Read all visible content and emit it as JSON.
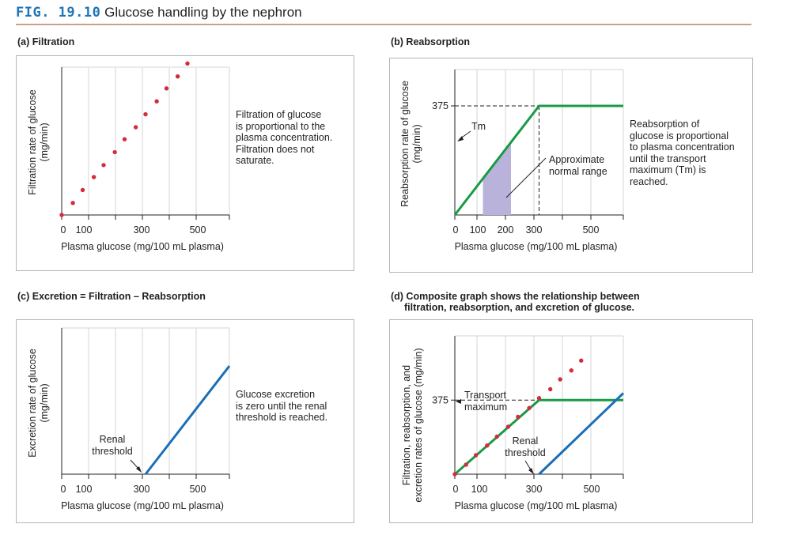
{
  "figure": {
    "number": "FIG. 19.10",
    "title": "Glucose handling by the nephron"
  },
  "colors": {
    "filtration": "#d52b3a",
    "reabsorption": "#199a45",
    "excretion": "#1a6fb6",
    "normal_range": "#b9b3dc",
    "accent": "#1f75b5"
  },
  "panels": {
    "a": {
      "label": "(a) Filtration",
      "note": [
        "Filtration of glucose",
        "is proportional to the",
        "plasma concentration.",
        "Filtration does not",
        "saturate."
      ]
    },
    "b": {
      "label": "(b) Reabsorption",
      "note": [
        "Reabsorption of",
        "glucose is proportional",
        "to plasma concentration",
        "until the transport",
        "maximum (Tm) is",
        "reached."
      ],
      "tm_label": "Tm",
      "range_label": [
        "Approximate",
        "normal range"
      ]
    },
    "c": {
      "label": "(c) Excretion = Filtration – Reabsorption",
      "note": [
        "Glucose excretion",
        "is zero until the renal",
        "threshold is reached."
      ],
      "threshold_label": [
        "Renal",
        "threshold"
      ]
    },
    "d": {
      "label": [
        "(d) Composite graph shows the relationship between",
        "filtration, reabsorption, and excretion of glucose."
      ],
      "tm_label": [
        "Transport",
        "maximum"
      ],
      "threshold_label": [
        "Renal",
        "threshold"
      ]
    }
  },
  "chart_data": [
    {
      "id": "a",
      "type": "scatter",
      "xlabel": "Plasma glucose (mg/100 mL plasma)",
      "ylabel": [
        "Filtration rate of glucose",
        "(mg/min)"
      ],
      "xticks": [
        0,
        100,
        300,
        500
      ],
      "xlim": [
        0,
        600
      ],
      "ylim": [
        0,
        800
      ],
      "series": [
        {
          "kind": "filtration",
          "x": [
            0,
            40,
            75,
            115,
            150,
            190,
            225,
            265,
            300,
            340,
            375,
            415,
            450
          ],
          "y": [
            0,
            65,
            135,
            205,
            270,
            340,
            410,
            475,
            545,
            615,
            685,
            750,
            820
          ]
        }
      ]
    },
    {
      "id": "b",
      "type": "line",
      "xlabel": "Plasma glucose (mg/100 mL plasma)",
      "ylabel": [
        "Reabsorption rate of glucose",
        "(mg/min)"
      ],
      "xticks": [
        0,
        100,
        200,
        300,
        500
      ],
      "yticks": [
        375
      ],
      "xlim": [
        0,
        600
      ],
      "ylim": [
        0,
        500
      ],
      "tm": 375,
      "normal_range": [
        100,
        200
      ],
      "series": [
        {
          "kind": "reabsorption",
          "x": [
            0,
            300,
            600
          ],
          "y": [
            0,
            375,
            375
          ]
        }
      ]
    },
    {
      "id": "c",
      "type": "line",
      "xlabel": "Plasma glucose (mg/100 mL plasma)",
      "ylabel": [
        "Excretion rate of glucose",
        "(mg/min)"
      ],
      "xticks": [
        0,
        100,
        300,
        500
      ],
      "xlim": [
        0,
        600
      ],
      "ylim": [
        0,
        500
      ],
      "renal_threshold": 300,
      "series": [
        {
          "kind": "excretion",
          "x": [
            300,
            600
          ],
          "y": [
            0,
            370
          ]
        }
      ]
    },
    {
      "id": "d",
      "type": "line",
      "xlabel": "Plasma glucose (mg/100 mL plasma)",
      "ylabel": [
        "Filtration, reabsorption, and",
        "excretion rates of glucose (mg/min)"
      ],
      "xticks": [
        0,
        100,
        300,
        500
      ],
      "yticks": [
        375
      ],
      "xlim": [
        0,
        600
      ],
      "ylim": [
        0,
        700
      ],
      "tm": 375,
      "renal_threshold": 300,
      "series": [
        {
          "kind": "filtration",
          "x": [
            0,
            40,
            75,
            115,
            150,
            190,
            225,
            265,
            300,
            340,
            375,
            415,
            450
          ],
          "y": [
            0,
            48,
            96,
            145,
            190,
            240,
            290,
            335,
            385,
            430,
            480,
            525,
            575
          ]
        },
        {
          "kind": "reabsorption",
          "x": [
            0,
            300,
            600
          ],
          "y": [
            0,
            375,
            375
          ]
        },
        {
          "kind": "excretion",
          "x": [
            300,
            600
          ],
          "y": [
            0,
            410
          ]
        }
      ]
    }
  ]
}
